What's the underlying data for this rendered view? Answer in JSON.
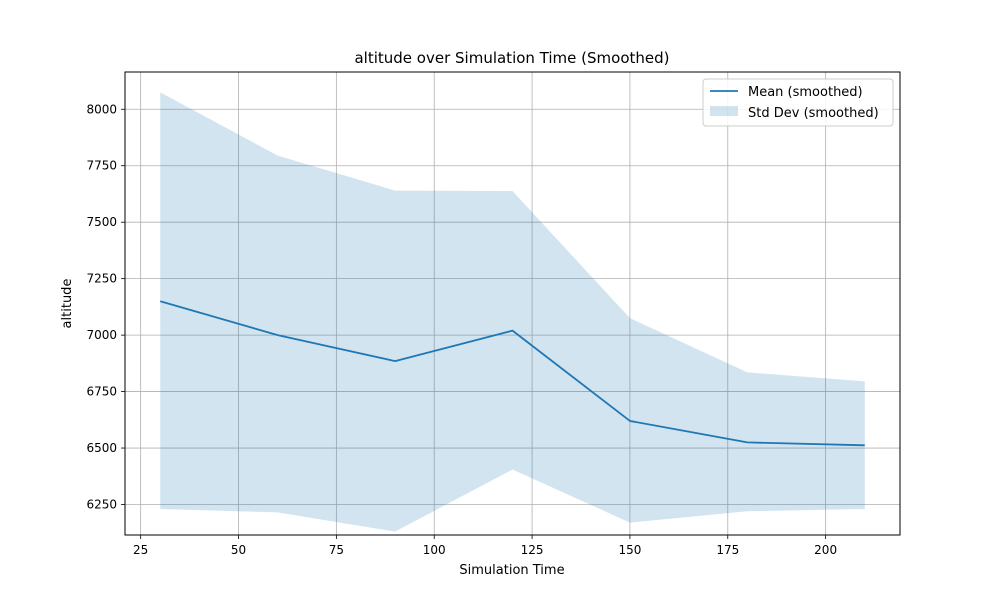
{
  "chart_data": {
    "type": "line",
    "title": "altitude over Simulation Time (Smoothed)",
    "xlabel": "Simulation Time",
    "ylabel": "altitude",
    "xlim": [
      21,
      219
    ],
    "ylim": [
      6115,
      8165
    ],
    "xticks": [
      25,
      50,
      75,
      100,
      125,
      150,
      175,
      200
    ],
    "yticks": [
      6250,
      6500,
      6750,
      7000,
      7250,
      7500,
      7750,
      8000
    ],
    "grid": true,
    "legend_position": "top-right",
    "x": [
      30,
      60,
      90,
      120,
      150,
      180,
      210
    ],
    "series": [
      {
        "name": "Mean (smoothed)",
        "kind": "line",
        "color": "#1f77b4",
        "values": [
          7150,
          7000,
          6885,
          7020,
          6620,
          6525,
          6512
        ]
      },
      {
        "name": "Std Dev (smoothed)",
        "kind": "band",
        "color": "#1f77b4",
        "upper": [
          8075,
          7795,
          7640,
          7638,
          7075,
          6835,
          6795
        ],
        "lower": [
          6230,
          6215,
          6130,
          6405,
          6170,
          6220,
          6230
        ]
      }
    ]
  }
}
